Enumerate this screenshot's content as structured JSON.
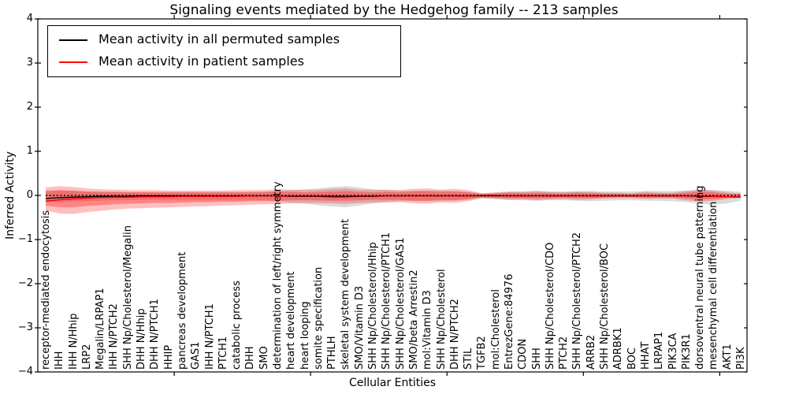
{
  "figure": {
    "title": "Signaling events mediated by the Hedgehog family -- 213 samples",
    "xlabel": "Cellular Entities",
    "ylabel": "Inferred Activity"
  },
  "legend": {
    "items": [
      {
        "label": "Mean activity in all permuted samples",
        "color": "#000000"
      },
      {
        "label": "Mean activity in patient samples",
        "color": "#ff0000"
      }
    ]
  },
  "chart_data": {
    "type": "line",
    "title": "Signaling events mediated by the Hedgehog family -- 213 samples",
    "xlabel": "Cellular Entities",
    "ylabel": "Inferred Activity",
    "ylim": [
      -4,
      4
    ],
    "ytick_labels": [
      "4",
      "3",
      "2",
      "1",
      "0",
      "−1",
      "−2",
      "−3",
      "−4"
    ],
    "ytick_values": [
      4,
      3,
      2,
      1,
      0,
      -1,
      -2,
      -3,
      -4
    ],
    "grid": false,
    "legend_position": "upper left",
    "baseline": 0,
    "baseline_style": "dotted",
    "categories": [
      "receptor-mediated endocytosis",
      "IHH",
      "IHH N/Hhip",
      "LRP2",
      "Megalin/LRPAP1",
      "IHH N/PTCH2",
      "SHH Np/Cholesterol/Megalin",
      "DHH N/Hhip",
      "DHH N/PTCH1",
      "HHIP",
      "pancreas development",
      "GAS1",
      "IHH N/PTCH1",
      "PTCH1",
      "catabolic process",
      "DHH",
      "SMO",
      "determination of left/right symmetry",
      "heart development",
      "heart looping",
      "somite specification",
      "PTHLH",
      "skeletal system development",
      "SMO/Vitamin D3",
      "SHH Np/Cholesterol/Hhip",
      "SHH Np/Cholesterol/PTCH1",
      "SHH Np/Cholesterol/GAS1",
      "SMO/beta Arrestin2",
      "mol:Vitamin D3",
      "SHH Np/Cholesterol",
      "DHH N/PTCH2",
      "STIL",
      "TGFB2",
      "mol:Cholesterol",
      "EntrezGene:84976",
      "CDON",
      "SHH",
      "SHH Np/Cholesterol/CDO",
      "PTCH2",
      "SHH Np/Cholesterol/PTCH2",
      "ARRB2",
      "SHH Np/Cholesterol/BOC",
      "ADRBK1",
      "BOC",
      "HHAT",
      "LRPAP1",
      "PIK3CA",
      "PIK3R1",
      "dorsoventral neural tube patterning",
      "mesenchymal cell differentiation",
      "AKT1",
      "PI3K"
    ],
    "series": [
      {
        "name": "Mean activity in all permuted samples",
        "color": "#000000",
        "style": "solid",
        "values": [
          -0.07,
          -0.05,
          -0.04,
          -0.03,
          -0.02,
          -0.02,
          -0.02,
          -0.01,
          -0.01,
          -0.01,
          -0.01,
          -0.01,
          -0.01,
          -0.01,
          -0.01,
          -0.01,
          -0.01,
          -0.01,
          -0.02,
          -0.02,
          -0.02,
          -0.03,
          -0.03,
          -0.02,
          -0.02,
          -0.01,
          -0.01,
          -0.01,
          -0.01,
          -0.01,
          -0.01,
          -0.01,
          -0.01,
          -0.01,
          -0.01,
          -0.01,
          -0.01,
          -0.01,
          -0.01,
          -0.01,
          -0.01,
          -0.01,
          -0.01,
          -0.01,
          -0.01,
          -0.01,
          -0.01,
          -0.01,
          -0.02,
          -0.02,
          -0.03,
          -0.04
        ]
      },
      {
        "name": "Mean activity in patient samples",
        "color": "#ff0000",
        "style": "solid",
        "values": [
          -0.13,
          -0.1,
          -0.08,
          -0.06,
          -0.05,
          -0.04,
          -0.04,
          -0.03,
          -0.03,
          -0.03,
          -0.02,
          -0.02,
          -0.02,
          -0.02,
          -0.02,
          -0.01,
          -0.01,
          -0.01,
          -0.01,
          -0.01,
          -0.01,
          -0.01,
          -0.01,
          -0.01,
          -0.01,
          -0.01,
          -0.01,
          -0.01,
          -0.01,
          -0.01,
          -0.01,
          -0.01,
          0.0,
          0.0,
          -0.01,
          -0.01,
          -0.01,
          -0.01,
          -0.01,
          -0.01,
          -0.01,
          -0.01,
          -0.01,
          -0.01,
          -0.01,
          -0.01,
          -0.01,
          -0.01,
          -0.01,
          -0.02,
          -0.03,
          -0.04
        ]
      }
    ],
    "bands": [
      {
        "name": "permuted-samples-spread",
        "color": "#b0b0b0",
        "opacity": 0.45,
        "upper": [
          0.1,
          0.11,
          0.1,
          0.09,
          0.09,
          0.08,
          0.08,
          0.08,
          0.08,
          0.08,
          0.08,
          0.08,
          0.08,
          0.08,
          0.08,
          0.08,
          0.09,
          0.1,
          0.12,
          0.14,
          0.16,
          0.19,
          0.21,
          0.18,
          0.14,
          0.12,
          0.11,
          0.11,
          0.11,
          0.11,
          0.1,
          0.08,
          0.05,
          0.06,
          0.08,
          0.09,
          0.1,
          0.09,
          0.09,
          0.09,
          0.1,
          0.09,
          0.09,
          0.09,
          0.1,
          0.1,
          0.1,
          0.11,
          0.13,
          0.12,
          0.11,
          0.08
        ],
        "lower": [
          -0.14,
          -0.15,
          -0.14,
          -0.13,
          -0.12,
          -0.11,
          -0.11,
          -0.1,
          -0.1,
          -0.1,
          -0.1,
          -0.1,
          -0.1,
          -0.1,
          -0.1,
          -0.1,
          -0.11,
          -0.13,
          -0.16,
          -0.19,
          -0.22,
          -0.25,
          -0.27,
          -0.23,
          -0.18,
          -0.15,
          -0.13,
          -0.13,
          -0.13,
          -0.13,
          -0.12,
          -0.1,
          -0.07,
          -0.08,
          -0.1,
          -0.11,
          -0.12,
          -0.11,
          -0.11,
          -0.12,
          -0.13,
          -0.12,
          -0.11,
          -0.11,
          -0.12,
          -0.12,
          -0.13,
          -0.15,
          -0.19,
          -0.21,
          -0.18,
          -0.12
        ]
      },
      {
        "name": "patient-samples-spread-outer",
        "color": "#ff0000",
        "opacity": 0.25,
        "upper": [
          0.18,
          0.21,
          0.19,
          0.16,
          0.14,
          0.13,
          0.12,
          0.12,
          0.12,
          0.11,
          0.11,
          0.11,
          0.11,
          0.11,
          0.12,
          0.12,
          0.12,
          0.14,
          0.13,
          0.12,
          0.13,
          0.15,
          0.16,
          0.13,
          0.12,
          0.13,
          0.12,
          0.15,
          0.16,
          0.13,
          0.15,
          0.12,
          0.05,
          0.07,
          0.09,
          0.08,
          0.1,
          0.08,
          0.07,
          0.09,
          0.08,
          0.06,
          0.06,
          0.05,
          0.08,
          0.06,
          0.06,
          0.1,
          0.13,
          0.11,
          0.07,
          0.04
        ],
        "lower": [
          -0.34,
          -0.41,
          -0.42,
          -0.38,
          -0.35,
          -0.32,
          -0.3,
          -0.29,
          -0.28,
          -0.27,
          -0.26,
          -0.25,
          -0.24,
          -0.23,
          -0.22,
          -0.21,
          -0.2,
          -0.19,
          -0.18,
          -0.17,
          -0.17,
          -0.18,
          -0.19,
          -0.17,
          -0.16,
          -0.16,
          -0.15,
          -0.18,
          -0.19,
          -0.16,
          -0.17,
          -0.13,
          -0.06,
          -0.08,
          -0.1,
          -0.09,
          -0.11,
          -0.09,
          -0.08,
          -0.1,
          -0.09,
          -0.07,
          -0.06,
          -0.06,
          -0.08,
          -0.07,
          -0.07,
          -0.11,
          -0.14,
          -0.12,
          -0.08,
          -0.05
        ]
      },
      {
        "name": "patient-samples-spread-inner",
        "color": "#ff0000",
        "opacity": 0.3,
        "upper": [
          0.1,
          0.12,
          0.11,
          0.09,
          0.08,
          0.08,
          0.07,
          0.07,
          0.07,
          0.07,
          0.07,
          0.07,
          0.07,
          0.07,
          0.07,
          0.07,
          0.07,
          0.09,
          0.08,
          0.07,
          0.08,
          0.09,
          0.1,
          0.08,
          0.07,
          0.08,
          0.07,
          0.09,
          0.1,
          0.08,
          0.09,
          0.07,
          0.03,
          0.04,
          0.06,
          0.05,
          0.06,
          0.05,
          0.04,
          0.06,
          0.05,
          0.04,
          0.04,
          0.03,
          0.05,
          0.04,
          0.04,
          0.06,
          0.09,
          0.07,
          0.04,
          0.03
        ],
        "lower": [
          -0.23,
          -0.27,
          -0.27,
          -0.24,
          -0.22,
          -0.2,
          -0.19,
          -0.18,
          -0.17,
          -0.17,
          -0.16,
          -0.15,
          -0.15,
          -0.14,
          -0.14,
          -0.13,
          -0.13,
          -0.12,
          -0.11,
          -0.11,
          -0.11,
          -0.12,
          -0.12,
          -0.11,
          -0.1,
          -0.1,
          -0.1,
          -0.12,
          -0.12,
          -0.1,
          -0.11,
          -0.08,
          -0.04,
          -0.05,
          -0.06,
          -0.06,
          -0.07,
          -0.06,
          -0.05,
          -0.06,
          -0.06,
          -0.05,
          -0.04,
          -0.04,
          -0.05,
          -0.05,
          -0.05,
          -0.07,
          -0.09,
          -0.08,
          -0.05,
          -0.03
        ]
      }
    ]
  }
}
